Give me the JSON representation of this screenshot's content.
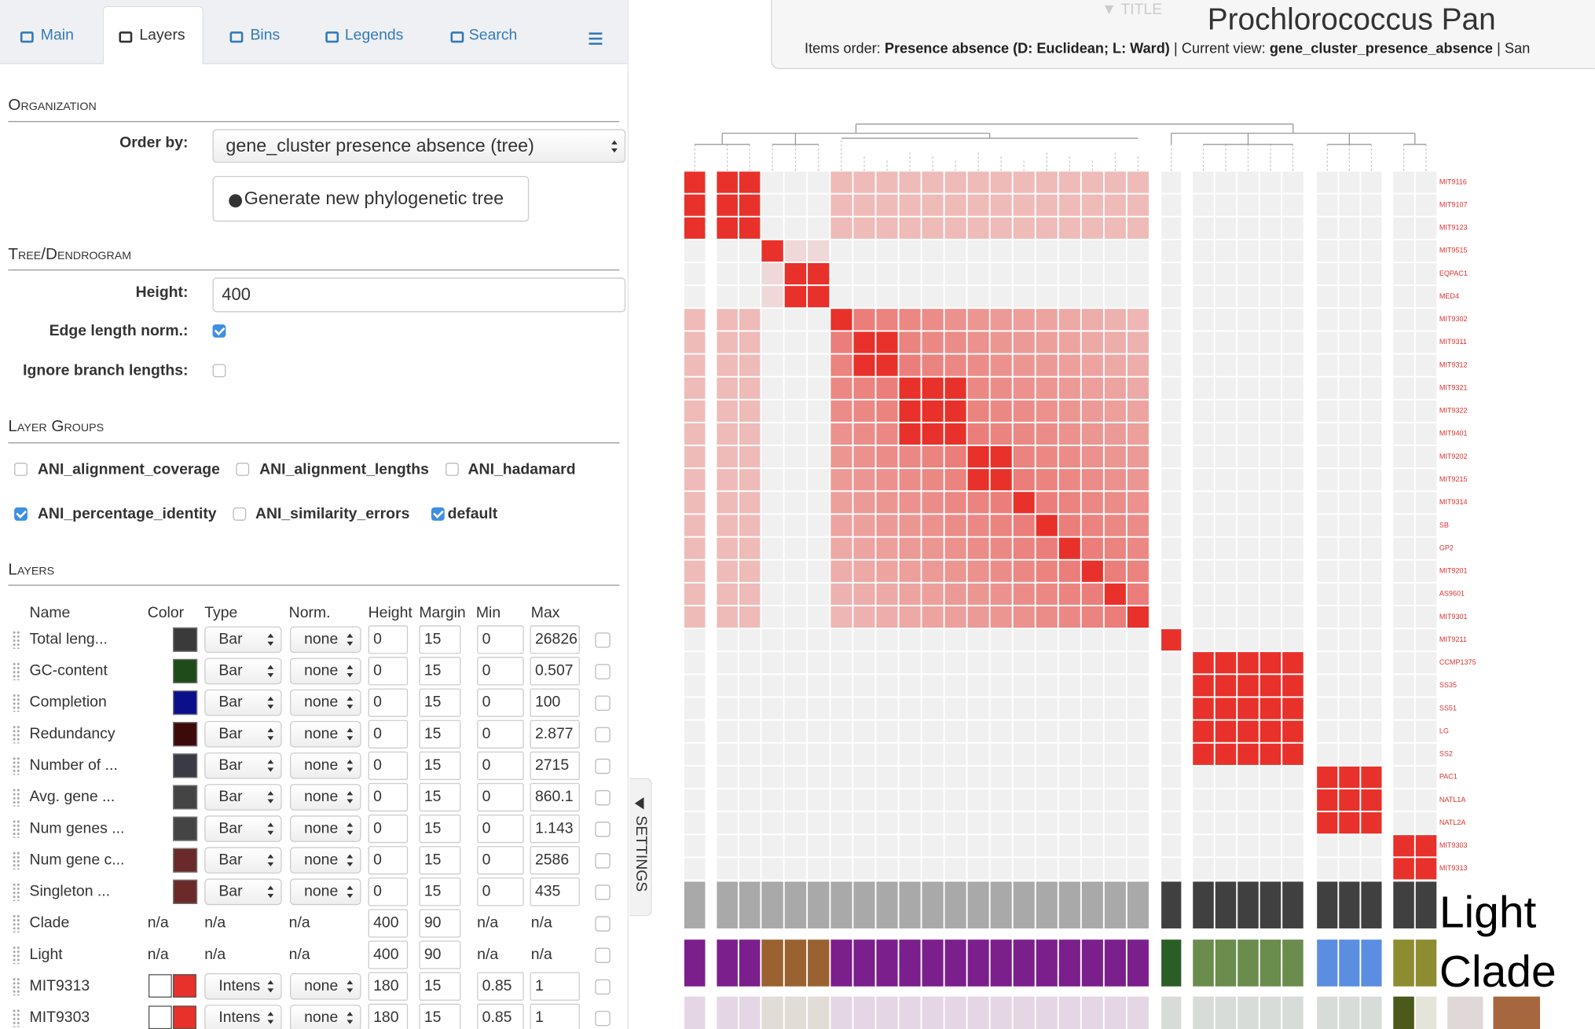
{
  "tabs": [
    "Main",
    "Layers",
    "Bins",
    "Legends",
    "Search"
  ],
  "organization": {
    "heading": "Organization",
    "order_by_label": "Order by:",
    "order_by_value": "gene_cluster presence absence (tree)",
    "generate_button": "Generate new phylogenetic tree"
  },
  "tree": {
    "heading": "Tree/Dendrogram",
    "height_label": "Height:",
    "height_value": 400,
    "edge_length_norm": {
      "label": "Edge length norm.:",
      "checked": true
    },
    "ignore_branch_lengths": {
      "label": "Ignore branch lengths:",
      "checked": false
    }
  },
  "layer_groups": {
    "heading": "Layer Groups",
    "items": [
      {
        "name": "ANI_alignment_coverage",
        "checked": false
      },
      {
        "name": "ANI_alignment_lengths",
        "checked": false
      },
      {
        "name": "ANI_hadamard",
        "checked": false
      },
      {
        "name": "ANI_percentage_identity",
        "checked": true
      },
      {
        "name": "ANI_similarity_errors",
        "checked": false
      },
      {
        "name": "default",
        "checked": true
      }
    ]
  },
  "layers": {
    "heading": "Layers",
    "columns": [
      "Name",
      "Color",
      "Type",
      "Norm.",
      "Height",
      "Margin",
      "Min",
      "Max"
    ],
    "rows": [
      {
        "name": "Total leng...",
        "color": "#3a3a3a",
        "type": "Bar",
        "norm": "none",
        "height": 0,
        "margin": 15,
        "min": 0,
        "max": 26826
      },
      {
        "name": "GC-content",
        "color": "#1f4a1a",
        "type": "Bar",
        "norm": "none",
        "height": 0,
        "margin": 15,
        "min": 0,
        "max": 0.507
      },
      {
        "name": "Completion",
        "color": "#0a0f8a",
        "type": "Bar",
        "norm": "none",
        "height": 0,
        "margin": 15,
        "min": 0,
        "max": 100
      },
      {
        "name": "Redundancy",
        "color": "#3d0a0a",
        "type": "Bar",
        "norm": "none",
        "height": 0,
        "margin": 15,
        "min": 0,
        "max": 2.877
      },
      {
        "name": "Number of ...",
        "color": "#3a3a44",
        "type": "Bar",
        "norm": "none",
        "height": 0,
        "margin": 15,
        "min": 0,
        "max": 2715
      },
      {
        "name": "Avg. gene ...",
        "color": "#444444",
        "type": "Bar",
        "norm": "none",
        "height": 0,
        "margin": 15,
        "min": 0,
        "max": 860.1
      },
      {
        "name": "Num genes ...",
        "color": "#444444",
        "type": "Bar",
        "norm": "none",
        "height": 0,
        "margin": 15,
        "min": 0,
        "max": 1.143
      },
      {
        "name": "Num gene c...",
        "color": "#6a2a2a",
        "type": "Bar",
        "norm": "none",
        "height": 0,
        "margin": 15,
        "min": 0,
        "max": 2586
      },
      {
        "name": "Singleton ...",
        "color": "#6a2a2a",
        "type": "Bar",
        "norm": "none",
        "height": 0,
        "margin": 15,
        "min": 0,
        "max": 435
      },
      {
        "name": "Clade",
        "color": "n/a",
        "type": "n/a",
        "norm": "n/a",
        "height": 400,
        "margin": 90,
        "min": "n/a",
        "max": "n/a"
      },
      {
        "name": "Light",
        "color": "n/a",
        "type": "n/a",
        "norm": "n/a",
        "height": 400,
        "margin": 90,
        "min": "n/a",
        "max": "n/a"
      },
      {
        "name": "MIT9313",
        "color": [
          "#ffffff",
          "#e8312a"
        ],
        "type": "Intens",
        "norm": "none",
        "height": 180,
        "margin": 15,
        "min": 0.85,
        "max": 1
      },
      {
        "name": "MIT9303",
        "color": [
          "#ffffff",
          "#e8312a"
        ],
        "type": "Intens",
        "norm": "none",
        "height": 180,
        "margin": 15,
        "min": 0.85,
        "max": 1
      }
    ]
  },
  "settings_tab": "SETTINGS",
  "title_panel": {
    "toggle": "▼ TITLE",
    "title": "Prochlorococcus Pan",
    "items_order_label": "Items order:",
    "items_order": "Presence absence (D: Euclidean; L: Ward)",
    "separator": "|",
    "current_view_label": "Current view:",
    "current_view": "gene_cluster_presence_absence",
    "next_label": "San"
  },
  "heatmap": {
    "row_labels": [
      "MIT9116",
      "MIT9107",
      "MIT9123",
      "MIT9515",
      "EQPAC1",
      "MED4",
      "MIT9302",
      "MIT9311",
      "MIT9312",
      "MIT9321",
      "MIT9322",
      "MIT9401",
      "MIT9202",
      "MIT9215",
      "MIT9314",
      "SB",
      "GP2",
      "MIT9201",
      "AS9601",
      "MIT9301",
      "MIT9211",
      "CCMP1375",
      "SS35",
      "SS51",
      "LG",
      "SS2",
      "PAC1",
      "NATL1A",
      "NATL2A",
      "MIT9303",
      "MIT9313"
    ],
    "layer_labels": [
      "Light",
      "Clade"
    ]
  }
}
